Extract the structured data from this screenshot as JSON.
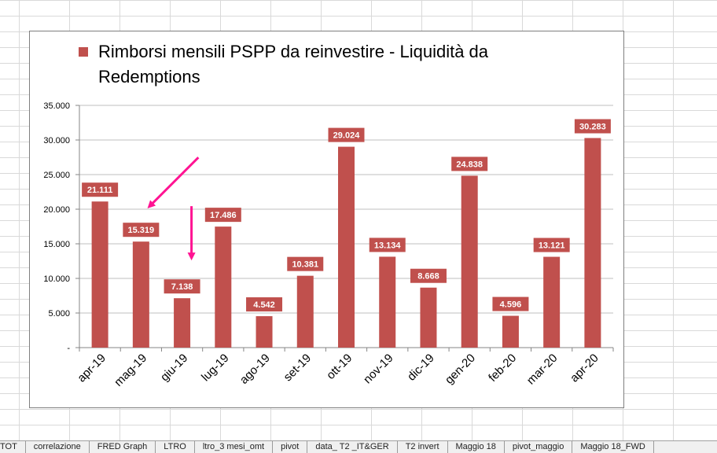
{
  "chart_data": {
    "type": "bar",
    "title": "",
    "xlabel": "",
    "ylabel": "",
    "ylim": [
      0,
      35000
    ],
    "yticks": [
      0,
      5000,
      10000,
      15000,
      20000,
      25000,
      30000,
      35000
    ],
    "ytick_labels": [
      "-",
      "5.000",
      "10.000",
      "15.000",
      "20.000",
      "25.000",
      "30.000",
      "35.000"
    ],
    "grid": true,
    "legend_position": "top",
    "series": [
      {
        "name": "Rimborsi mensili PSPP da reinvestire - Liquidità da Redemptions",
        "color": "#c0504d",
        "values": [
          21111,
          15319,
          7138,
          17486,
          4542,
          10381,
          29024,
          13134,
          8668,
          24838,
          4596,
          13121,
          30283
        ],
        "labels": [
          "21.111",
          "15.319",
          "7.138",
          "17.486",
          "4.542",
          "10.381",
          "29.024",
          "13.134",
          "8.668",
          "24.838",
          "4.596",
          "13.121",
          "30.283"
        ]
      }
    ],
    "categories": [
      "apr-19",
      "mag-19",
      "giu-19",
      "lug-19",
      "ago-19",
      "set-19",
      "ott-19",
      "nov-19",
      "dic-19",
      "gen-20",
      "feb-20",
      "mar-20",
      "apr-20"
    ],
    "annotations": [
      {
        "type": "arrow",
        "target": "mag-19",
        "color": "#ff1493"
      },
      {
        "type": "arrow",
        "target": "giu-19",
        "color": "#ff1493"
      }
    ]
  },
  "sheet_tabs": [
    "TOT",
    "correlazione",
    "FRED Graph",
    "LTRO",
    "ltro_3 mesi_omt",
    "pivot",
    "data_ T2 _IT&GER",
    "T2 invert",
    "Maggio 18",
    "pivot_maggio",
    "Maggio 18_FWD"
  ]
}
